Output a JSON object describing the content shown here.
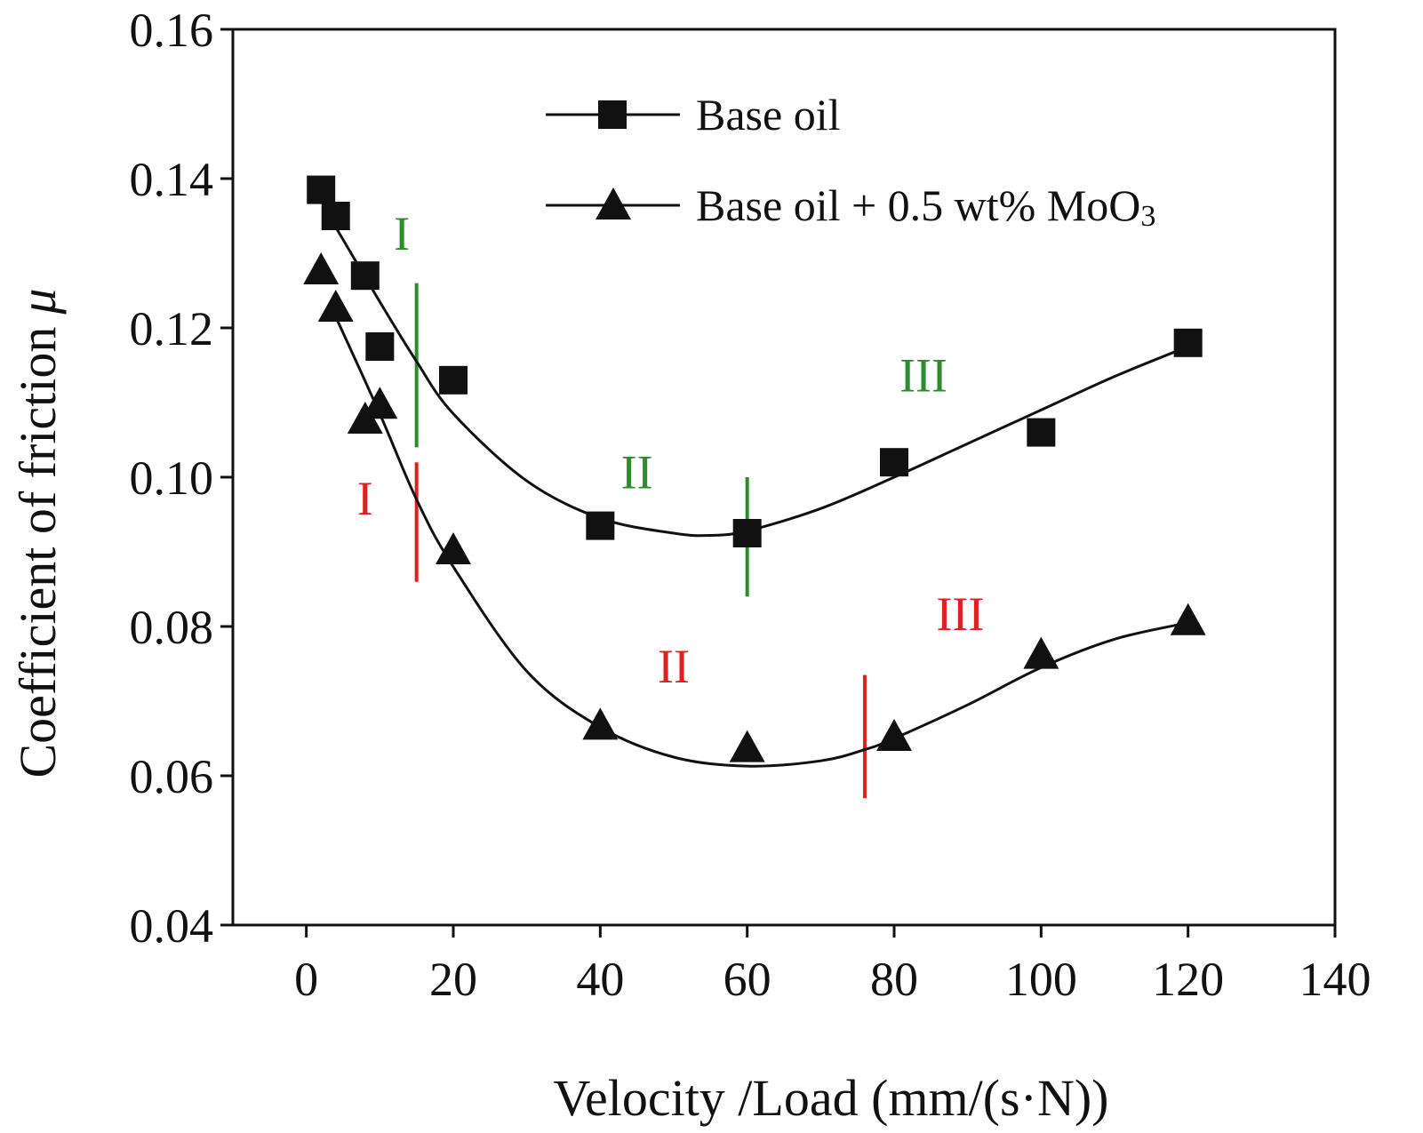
{
  "chart_data": {
    "type": "line",
    "title": "",
    "xlabel": "Velocity /Load (mm/(s·N))",
    "ylabel_text": "Coefficient of friction",
    "ylabel_symbol": "μ",
    "xlim": [
      -10,
      140
    ],
    "ylim": [
      0.04,
      0.16
    ],
    "xticks": [
      0,
      20,
      40,
      60,
      80,
      100,
      120,
      140
    ],
    "xtick_labels": [
      "0",
      "20",
      "40",
      "60",
      "80",
      "100",
      "120",
      "140"
    ],
    "yticks": [
      0.04,
      0.06,
      0.08,
      0.1,
      0.12,
      0.14,
      0.16
    ],
    "ytick_labels": [
      "0.04",
      "0.06",
      "0.08",
      "0.10",
      "0.12",
      "0.14",
      "0.16"
    ],
    "legend_position": "top-right",
    "series": [
      {
        "name": "Base oil",
        "legend_label": "Base oil",
        "marker": "square",
        "x": [
          2,
          4,
          8,
          10,
          20,
          40,
          60,
          80,
          100,
          120
        ],
        "y": [
          0.1385,
          0.135,
          0.127,
          0.1175,
          0.113,
          0.0935,
          0.0925,
          0.102,
          0.106,
          0.118
        ],
        "fit": [
          [
            4,
            0.1335
          ],
          [
            10,
            0.1235
          ],
          [
            15,
            0.1155
          ],
          [
            20,
            0.1085
          ],
          [
            30,
            0.0995
          ],
          [
            40,
            0.0945
          ],
          [
            50,
            0.0925
          ],
          [
            55,
            0.0922
          ],
          [
            60,
            0.0928
          ],
          [
            70,
            0.0958
          ],
          [
            80,
            0.1
          ],
          [
            90,
            0.1045
          ],
          [
            100,
            0.109
          ],
          [
            110,
            0.1135
          ],
          [
            120,
            0.1175
          ]
        ]
      },
      {
        "name": "Base oil + 0.5 wt% MoO3",
        "legend_label": "Base oil + 0.5 wt% MoO",
        "legend_subscript": "3",
        "marker": "triangle",
        "x": [
          2,
          4,
          8,
          10,
          20,
          40,
          60,
          80,
          100,
          120
        ],
        "y": [
          0.1275,
          0.1225,
          0.1075,
          0.1095,
          0.09,
          0.0665,
          0.0635,
          0.065,
          0.076,
          0.0805
        ],
        "fit": [
          [
            4,
            0.1215
          ],
          [
            10,
            0.1085
          ],
          [
            15,
            0.097
          ],
          [
            20,
            0.088
          ],
          [
            30,
            0.074
          ],
          [
            40,
            0.0665
          ],
          [
            50,
            0.0625
          ],
          [
            60,
            0.0613
          ],
          [
            70,
            0.062
          ],
          [
            76,
            0.0635
          ],
          [
            80,
            0.065
          ],
          [
            90,
            0.0695
          ],
          [
            100,
            0.0745
          ],
          [
            110,
            0.0783
          ],
          [
            120,
            0.0805
          ]
        ]
      }
    ],
    "region_dividers": [
      {
        "x": 15,
        "y_range": [
          0.104,
          0.126
        ],
        "color": "#2e8b2e"
      },
      {
        "x": 60,
        "y_range": [
          0.084,
          0.1
        ],
        "color": "#2e8b2e"
      },
      {
        "x": 15,
        "y_range": [
          0.086,
          0.102
        ],
        "color": "#e02020"
      },
      {
        "x": 76,
        "y_range": [
          0.057,
          0.0735
        ],
        "color": "#e02020"
      }
    ],
    "annotations": [
      {
        "text": "I",
        "x": 13,
        "y": 0.1305,
        "color": "#2e8b2e"
      },
      {
        "text": "II",
        "x": 45,
        "y": 0.0985,
        "color": "#2e8b2e"
      },
      {
        "text": "III",
        "x": 84,
        "y": 0.1115,
        "color": "#2e8b2e"
      },
      {
        "text": "I",
        "x": 8,
        "y": 0.095,
        "color": "#e02020"
      },
      {
        "text": "II",
        "x": 50,
        "y": 0.0725,
        "color": "#e02020"
      },
      {
        "text": "III",
        "x": 89,
        "y": 0.0795,
        "color": "#e02020"
      }
    ]
  }
}
